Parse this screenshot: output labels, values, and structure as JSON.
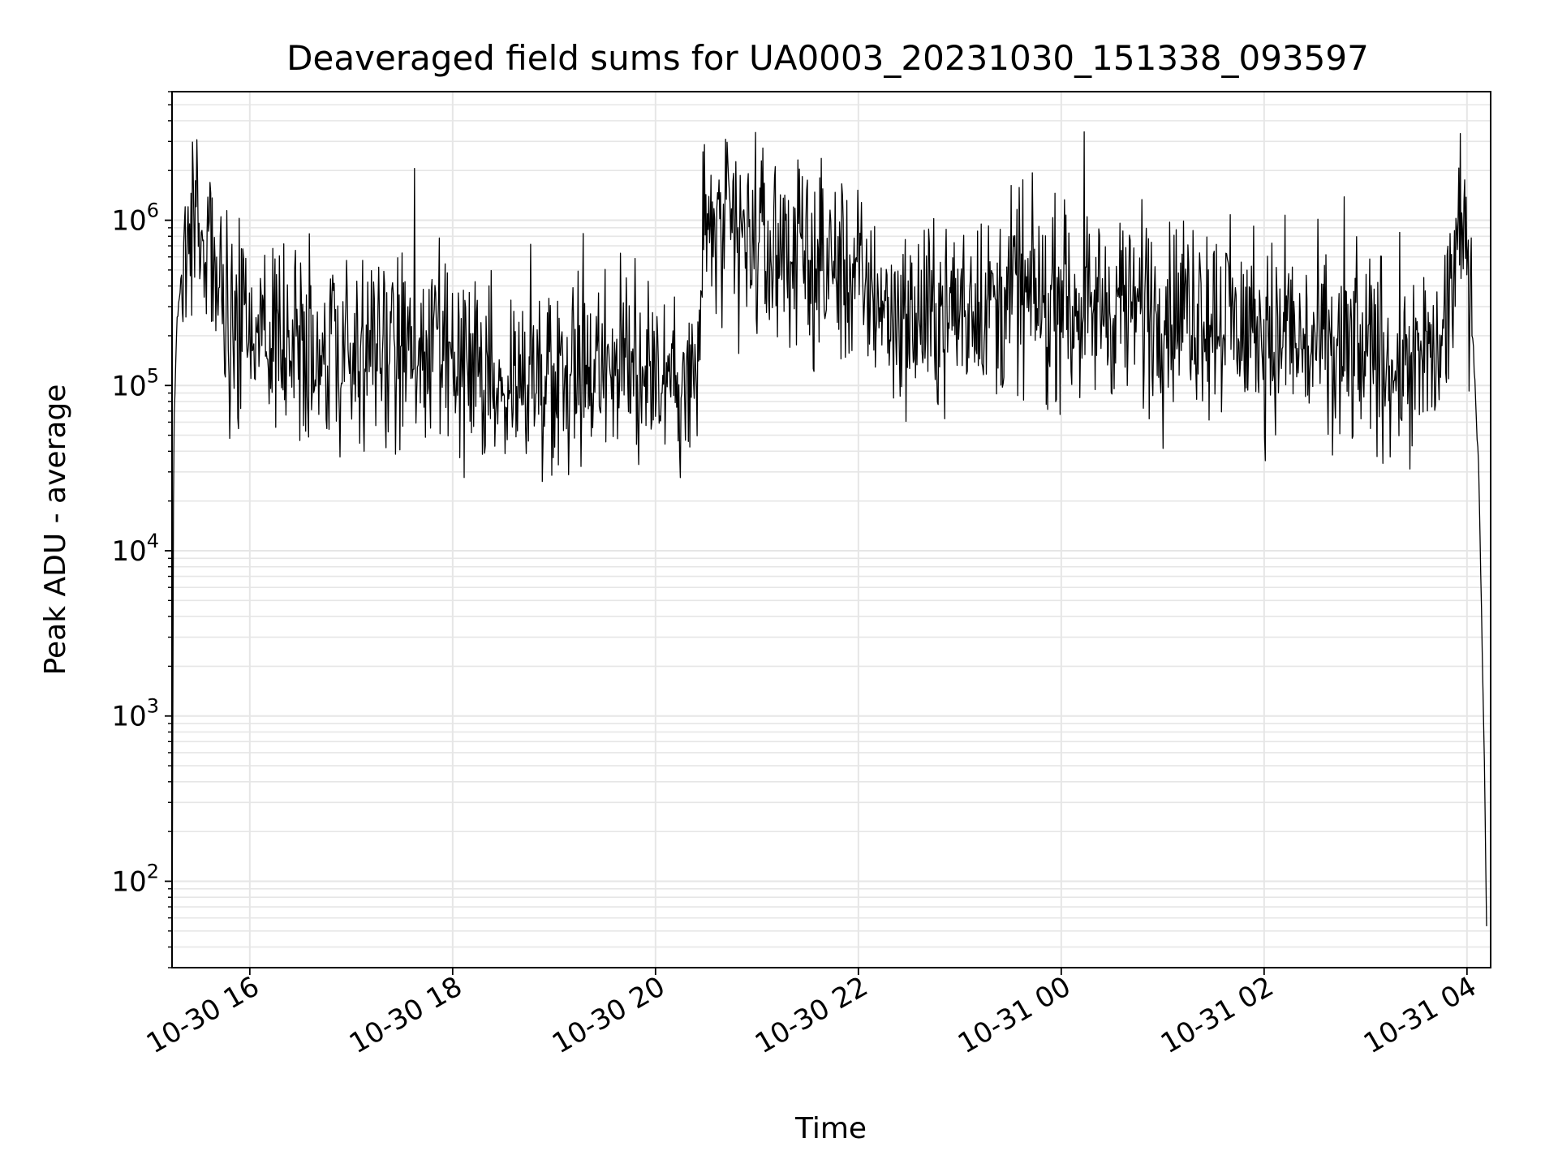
{
  "chart_data": {
    "type": "line",
    "title": "Deaveraged field sums for UA0003_20231030_151338_093597",
    "xlabel": "Time",
    "ylabel": "Peak ADU - average",
    "x_axis": {
      "kind": "datetime",
      "range": [
        "2023-10-30 15:14",
        "2023-10-31 04:14"
      ],
      "tick_labels": [
        "10-30 16",
        "10-30 18",
        "10-30 20",
        "10-30 22",
        "10-31 00",
        "10-31 02",
        "10-31 04"
      ],
      "tick_times": [
        "2023-10-30 16:00",
        "2023-10-30 18:00",
        "2023-10-30 20:00",
        "2023-10-30 22:00",
        "2023-10-31 00:00",
        "2023-10-31 02:00",
        "2023-10-31 04:00"
      ]
    },
    "y_axis": {
      "scale": "log",
      "range": [
        30,
        6000000
      ],
      "tick_values": [
        100,
        1000,
        10000,
        100000,
        1000000
      ],
      "tick_labels": [
        {
          "base": "10",
          "exp": "2"
        },
        {
          "base": "10",
          "exp": "3"
        },
        {
          "base": "10",
          "exp": "4"
        },
        {
          "base": "10",
          "exp": "5"
        },
        {
          "base": "10",
          "exp": "6"
        }
      ]
    },
    "grid": true,
    "legend": "none",
    "series": [
      {
        "color": "#000000",
        "x": [
          "2023-10-30 15:14",
          "2023-10-30 15:15",
          "2023-10-30 15:17",
          "2023-10-30 15:20",
          "2023-10-30 15:25",
          "2023-10-30 15:32",
          "2023-10-30 15:40",
          "2023-10-30 15:50",
          "2023-10-30 16:00",
          "2023-10-30 16:30",
          "2023-10-30 17:00",
          "2023-10-30 17:30",
          "2023-10-30 18:00",
          "2023-10-30 18:30",
          "2023-10-30 19:00",
          "2023-10-30 19:30",
          "2023-10-30 20:00",
          "2023-10-30 20:25",
          "2023-10-30 20:28",
          "2023-10-30 21:00",
          "2023-10-30 21:30",
          "2023-10-30 22:00",
          "2023-10-30 22:30",
          "2023-10-30 23:00",
          "2023-10-30 23:30",
          "2023-10-31 00:00",
          "2023-10-31 00:30",
          "2023-10-31 01:00",
          "2023-10-31 01:30",
          "2023-10-31 02:00",
          "2023-10-31 02:30",
          "2023-10-31 03:00",
          "2023-10-31 03:30",
          "2023-10-31 03:45",
          "2023-10-31 03:55",
          "2023-10-31 04:00",
          "2023-10-31 04:03",
          "2023-10-31 04:07",
          "2023-10-31 04:10",
          "2023-10-31 04:12"
        ],
        "y": [
          30,
          50000,
          250000,
          550000,
          1000000,
          700000,
          450000,
          180000,
          220000,
          200000,
          150000,
          160000,
          130000,
          100000,
          130000,
          140000,
          130000,
          100000,
          900000,
          700000,
          600000,
          450000,
          250000,
          300000,
          350000,
          320000,
          300000,
          300000,
          280000,
          200000,
          170000,
          150000,
          150000,
          150000,
          800000,
          600000,
          250000,
          30000,
          800,
          30
        ]
      }
    ]
  }
}
